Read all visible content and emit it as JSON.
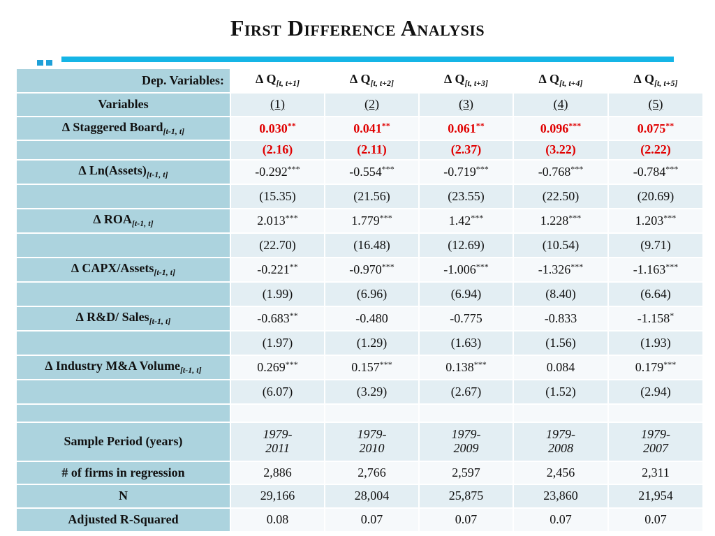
{
  "title": "First Difference Analysis",
  "colors": {
    "accent": "#15b5e6",
    "label_bg": "#acd3de",
    "significant": "#e00000"
  },
  "header": {
    "label": "Dep. Variables:",
    "columns": [
      {
        "symbol": "∆ Q",
        "sub": "[t, t+1]"
      },
      {
        "symbol": "∆ Q",
        "sub": "[t, t+2]"
      },
      {
        "symbol": "∆ Q",
        "sub": "[t, t+3]"
      },
      {
        "symbol": "∆ Q",
        "sub": "[t, t+4]"
      },
      {
        "symbol": "∆ Q",
        "sub": "[t, t+5]"
      }
    ]
  },
  "variables_row": {
    "label": "Variables",
    "cols": [
      "(1)",
      "(2)",
      "(3)",
      "(4)",
      "(5)"
    ]
  },
  "rows": [
    {
      "label": "∆ Staggered Board",
      "sub": "[t-1, t]",
      "coef": [
        {
          "v": "0.030",
          "s": "**"
        },
        {
          "v": "0.041",
          "s": "**"
        },
        {
          "v": "0.061",
          "s": "**"
        },
        {
          "v": "0.096",
          "s": "***"
        },
        {
          "v": "0.075",
          "s": "**"
        }
      ],
      "t": [
        "(2.16)",
        "(2.11)",
        "(2.37)",
        "(3.22)",
        "(2.22)"
      ]
    },
    {
      "label": "∆ Ln(Assets)",
      "sub": "[t-1, t]",
      "coef": [
        {
          "v": "-0.292",
          "s": "***"
        },
        {
          "v": "-0.554",
          "s": "***"
        },
        {
          "v": "-0.719",
          "s": "***"
        },
        {
          "v": "-0.768",
          "s": "***"
        },
        {
          "v": "-0.784",
          "s": "***"
        }
      ],
      "t": [
        "(15.35)",
        "(21.56)",
        "(23.55)",
        "(22.50)",
        "(20.69)"
      ]
    },
    {
      "label": "∆ ROA",
      "sub": "[t-1, t]",
      "coef": [
        {
          "v": "2.013",
          "s": "***"
        },
        {
          "v": "1.779",
          "s": "***"
        },
        {
          "v": "1.42",
          "s": "***"
        },
        {
          "v": "1.228",
          "s": "***"
        },
        {
          "v": "1.203",
          "s": "***"
        }
      ],
      "t": [
        "(22.70)",
        "(16.48)",
        "(12.69)",
        "(10.54)",
        "(9.71)"
      ]
    },
    {
      "label": "∆ CAPX/Assets",
      "sub": "[t-1, t]",
      "coef": [
        {
          "v": "-0.221",
          "s": "**"
        },
        {
          "v": "-0.970",
          "s": "***"
        },
        {
          "v": "-1.006",
          "s": "***"
        },
        {
          "v": "-1.326",
          "s": "***"
        },
        {
          "v": "-1.163",
          "s": "***"
        }
      ],
      "t": [
        "(1.99)",
        "(6.96)",
        "(6.94)",
        "(8.40)",
        "(6.64)"
      ]
    },
    {
      "label": "∆ R&D/ Sales",
      "sub": "[t-1, t]",
      "coef": [
        {
          "v": "-0.683",
          "s": "**"
        },
        {
          "v": "-0.480",
          "s": ""
        },
        {
          "v": "-0.775",
          "s": ""
        },
        {
          "v": "-0.833",
          "s": ""
        },
        {
          "v": "-1.158",
          "s": "*"
        }
      ],
      "t": [
        "(1.97)",
        "(1.29)",
        "(1.63)",
        "(1.56)",
        "(1.93)"
      ]
    },
    {
      "label": "∆ Industry M&A Volume",
      "sub": "[t-1, t]",
      "coef": [
        {
          "v": "0.269",
          "s": "***"
        },
        {
          "v": "0.157",
          "s": "***"
        },
        {
          "v": "0.138",
          "s": "***"
        },
        {
          "v": "0.084",
          "s": ""
        },
        {
          "v": "0.179",
          "s": "***"
        }
      ],
      "t": [
        "(6.07)",
        "(3.29)",
        "(2.67)",
        "(1.52)",
        "(2.94)"
      ]
    }
  ],
  "sample_period": {
    "label": "Sample Period (years)",
    "cols": [
      {
        "start": "1979-",
        "end": "2011"
      },
      {
        "start": "1979-",
        "end": "2010"
      },
      {
        "start": "1979-",
        "end": "2009"
      },
      {
        "start": "1979-",
        "end": "2008"
      },
      {
        "start": "1979-",
        "end": "2007"
      }
    ]
  },
  "firms": {
    "label": "# of firms in regression",
    "cols": [
      "2,886",
      "2,766",
      "2,597",
      "2,456",
      "2,311"
    ]
  },
  "n": {
    "label": "N",
    "cols": [
      "29,166",
      "28,004",
      "25,875",
      "23,860",
      "21,954"
    ]
  },
  "r2": {
    "label": "Adjusted R-Squared",
    "cols": [
      "0.08",
      "0.07",
      "0.07",
      "0.07",
      "0.07"
    ]
  }
}
